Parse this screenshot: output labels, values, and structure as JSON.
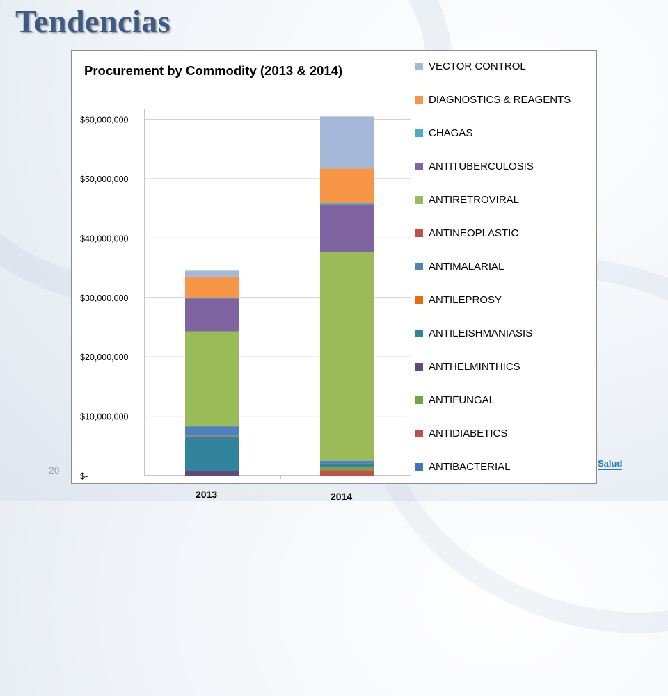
{
  "slide": {
    "title": "Tendencias",
    "page_number": "20",
    "logo_text": "Salud"
  },
  "chart_data": {
    "type": "bar",
    "stacked": true,
    "title": "Procurement by Commodity (2013 & 2014)",
    "categories": [
      "2013",
      "2014"
    ],
    "ylim": [
      0,
      65000000
    ],
    "yticks": [
      0,
      10000000,
      20000000,
      30000000,
      40000000,
      50000000,
      60000000
    ],
    "ytick_labels": [
      "$-",
      "$10,000,000",
      "$20,000,000",
      "$30,000,000",
      "$40,000,000",
      "$50,000,000",
      "$60,000,000"
    ],
    "grid": true,
    "legend_position": "right",
    "series": [
      {
        "name": "ANTIBACTERIAL",
        "color": "#4472c4",
        "values": [
          0,
          0
        ]
      },
      {
        "name": "ANTIDIABETICS",
        "color": "#c0504d",
        "values": [
          0,
          900000
        ]
      },
      {
        "name": "ANTIFUNGAL",
        "color": "#77a33e",
        "values": [
          0,
          500000
        ]
      },
      {
        "name": "ANTHELMINTHICS",
        "color": "#604a7b",
        "values": [
          700000,
          0
        ]
      },
      {
        "name": "ANTILEISHMANIASIS",
        "color": "#31849b",
        "values": [
          5900000,
          600000
        ]
      },
      {
        "name": "ANTILEPROSY",
        "color": "#e46c0a",
        "values": [
          100000,
          0
        ]
      },
      {
        "name": "ANTIMALARIAL",
        "color": "#4f81bd",
        "values": [
          1600000,
          500000
        ]
      },
      {
        "name": "ANTINEOPLASTIC",
        "color": "#c0504d",
        "values": [
          0,
          0
        ]
      },
      {
        "name": "ANTIRETROVIRAL",
        "color": "#9bbb59",
        "values": [
          16000000,
          35200000
        ]
      },
      {
        "name": "ANTITUBERCULOSIS",
        "color": "#8064a2",
        "values": [
          5500000,
          7900000
        ]
      },
      {
        "name": "CHAGAS",
        "color": "#4bacc6",
        "values": [
          200000,
          300000
        ]
      },
      {
        "name": "DIAGNOSTICS & REAGENTS",
        "color": "#f79646",
        "values": [
          3500000,
          5800000
        ]
      },
      {
        "name": "VECTOR CONTROL",
        "color": "#a5b8d9",
        "values": [
          1000000,
          8800000
        ]
      }
    ]
  }
}
